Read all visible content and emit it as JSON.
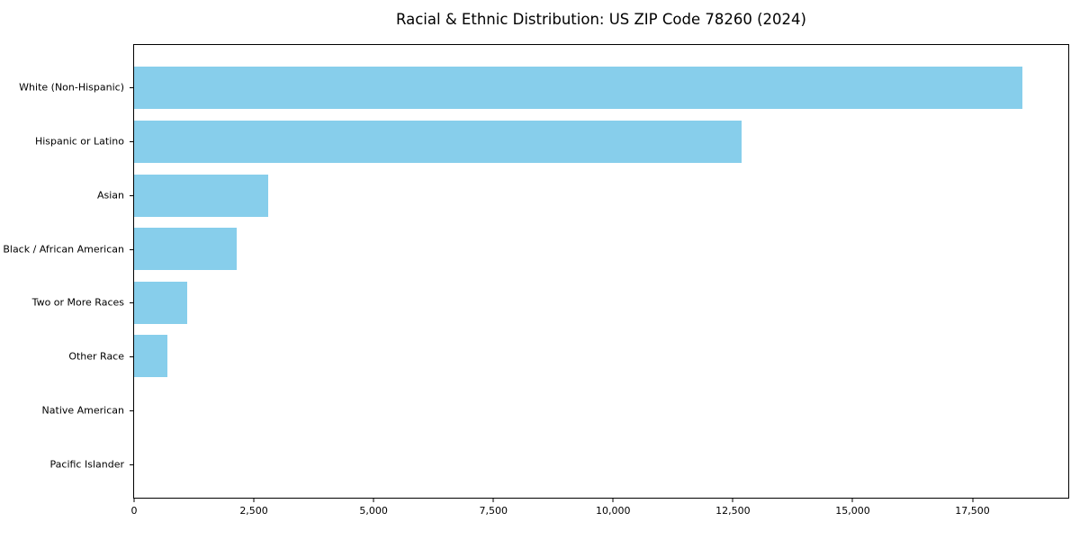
{
  "figure": {
    "background": "#ffffff",
    "frame_color": "#000000",
    "text_color": "#000000"
  },
  "chart_data": {
    "type": "bar",
    "orientation": "horizontal",
    "title": "Racial & Ethnic Distribution: US ZIP Code 78260 (2024)",
    "xlabel": "",
    "ylabel": "",
    "categories": [
      "White (Non-Hispanic)",
      "Hispanic or Latino",
      "Asian",
      "Black / African American",
      "Two or More Races",
      "Other Race",
      "Native American",
      "Pacific Islander"
    ],
    "values": [
      18550,
      12690,
      2800,
      2140,
      1115,
      690,
      0,
      0
    ],
    "xlim": [
      0,
      19500
    ],
    "x_ticks": [
      {
        "value": 0,
        "label": "0"
      },
      {
        "value": 2500,
        "label": "2,500"
      },
      {
        "value": 5000,
        "label": "5,000"
      },
      {
        "value": 7500,
        "label": "7,500"
      },
      {
        "value": 10000,
        "label": "10,000"
      },
      {
        "value": 12500,
        "label": "12,500"
      },
      {
        "value": 15000,
        "label": "15,000"
      },
      {
        "value": 17500,
        "label": "17,500"
      }
    ],
    "bar_color": "#87CEEB",
    "grid": false,
    "legend": "none"
  }
}
